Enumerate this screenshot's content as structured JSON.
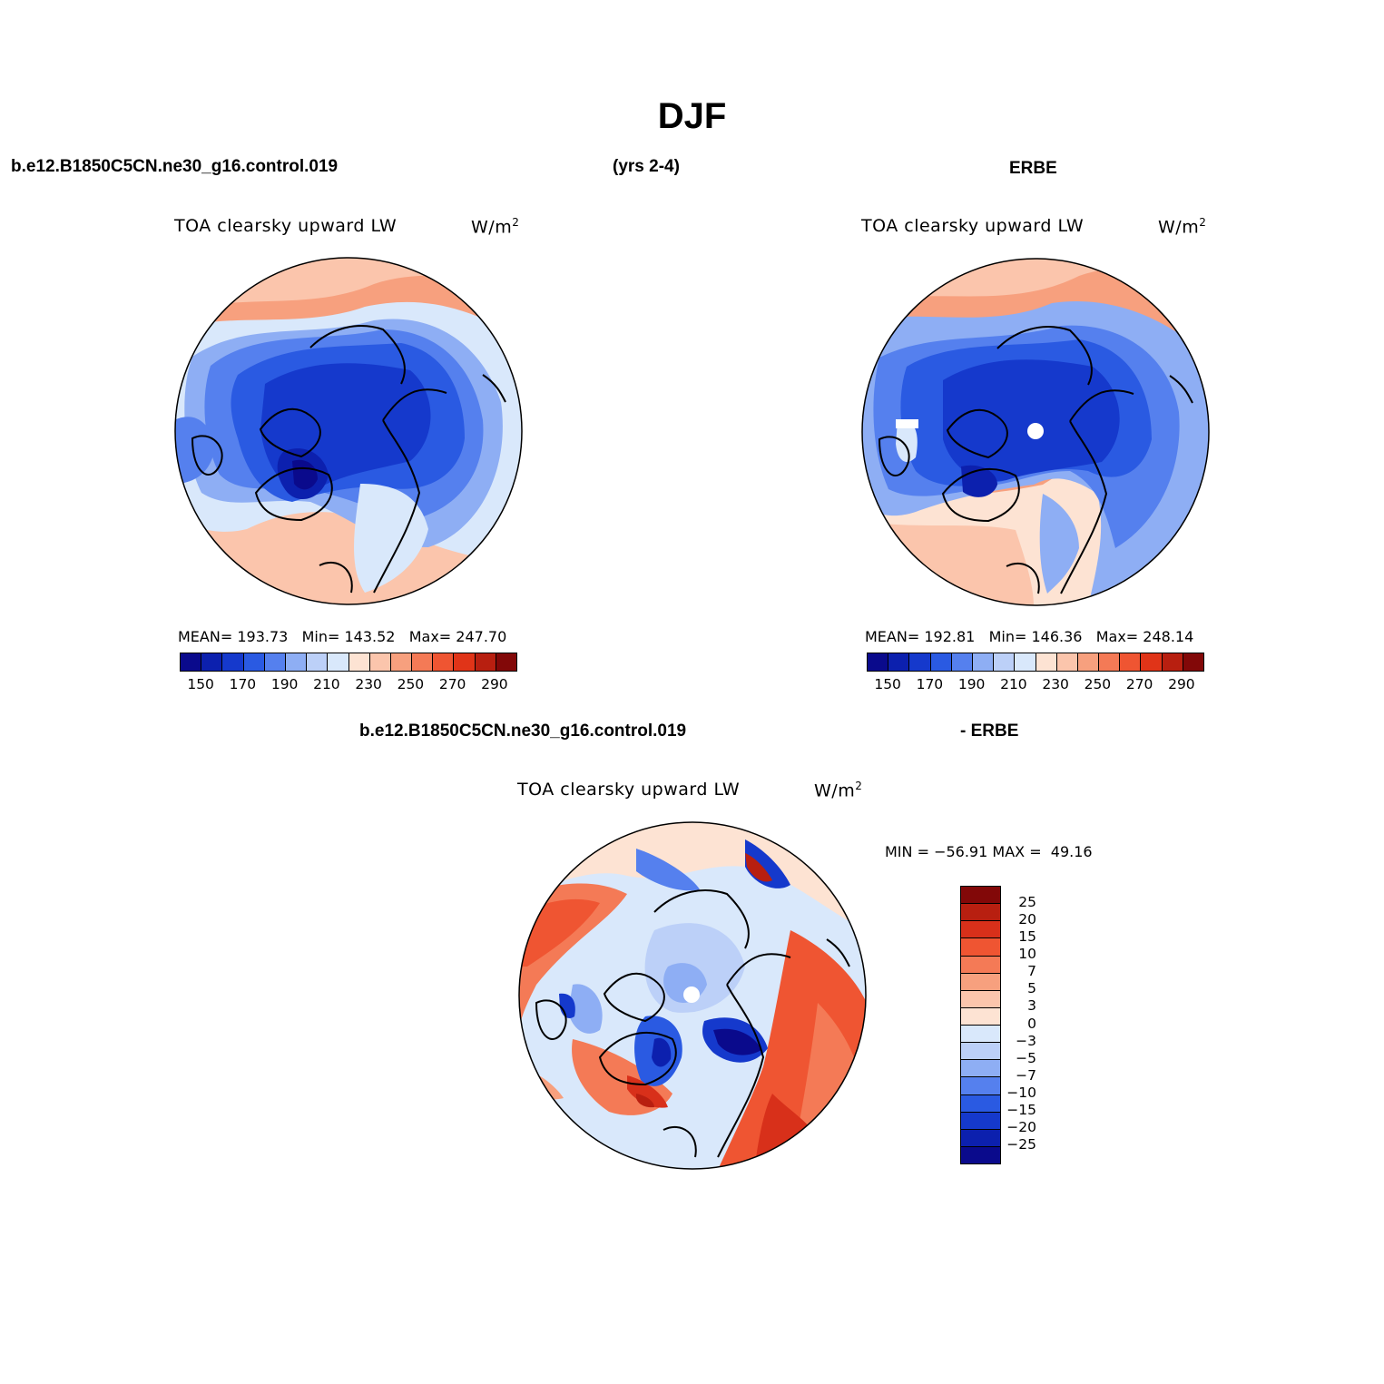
{
  "season": "DJF",
  "headers": {
    "case": "b.e12.B1850C5CN.ne30_g16.control.019",
    "years": "(yrs 2-4)",
    "obs": "ERBE",
    "diff_case": "b.e12.B1850C5CN.ne30_g16.control.019",
    "diff_obs": "- ERBE"
  },
  "panels": [
    {
      "variable": "TOA clearsky upward LW",
      "units": "W/m",
      "units_sup": "2",
      "stats": {
        "mean_label": "MEAN=",
        "mean": "193.73",
        "min_label": "Min=",
        "min": "143.52",
        "max_label": "Max=",
        "max": "247.70"
      },
      "ticks": [
        "150",
        "170",
        "190",
        "210",
        "230",
        "250",
        "270",
        "290"
      ]
    },
    {
      "variable": "TOA clearsky upward LW",
      "units": "W/m",
      "units_sup": "2",
      "stats": {
        "mean_label": "MEAN=",
        "mean": "192.81",
        "min_label": "Min=",
        "min": "146.36",
        "max_label": "Max=",
        "max": "248.14"
      },
      "ticks": [
        "150",
        "170",
        "190",
        "210",
        "230",
        "250",
        "270",
        "290"
      ]
    },
    {
      "variable": "TOA clearsky upward LW",
      "units": "W/m",
      "units_sup": "2",
      "stats": {
        "min_label": "MIN =",
        "min": "−56.91",
        "max_label": "MAX =",
        "max": "49.16"
      },
      "ticks": [
        "25",
        "20",
        "15",
        "10",
        "7",
        "5",
        "3",
        "0",
        "−3",
        "−5",
        "−7",
        "−10",
        "−15",
        "−20",
        "−25"
      ]
    }
  ],
  "colors": {
    "abs_scale": [
      "#0a0a8c",
      "#0c20ae",
      "#1539cc",
      "#2a5ae2",
      "#5580ee",
      "#8eaef4",
      "#bcd0f8",
      "#d9e8fb",
      "#fde3d3",
      "#fbc5ac",
      "#f7a07e",
      "#f47a56",
      "#ef5532",
      "#e03418",
      "#b81f10",
      "#820808"
    ],
    "diff_scale": [
      "#820808",
      "#b81f10",
      "#d8301a",
      "#ef5532",
      "#f47a56",
      "#f7a07e",
      "#fbc5ac",
      "#fde3d3",
      "#d9e8fb",
      "#bcd0f8",
      "#8eaef4",
      "#5580ee",
      "#2a5ae2",
      "#1539cc",
      "#0c20ae",
      "#0a0a8c"
    ]
  }
}
